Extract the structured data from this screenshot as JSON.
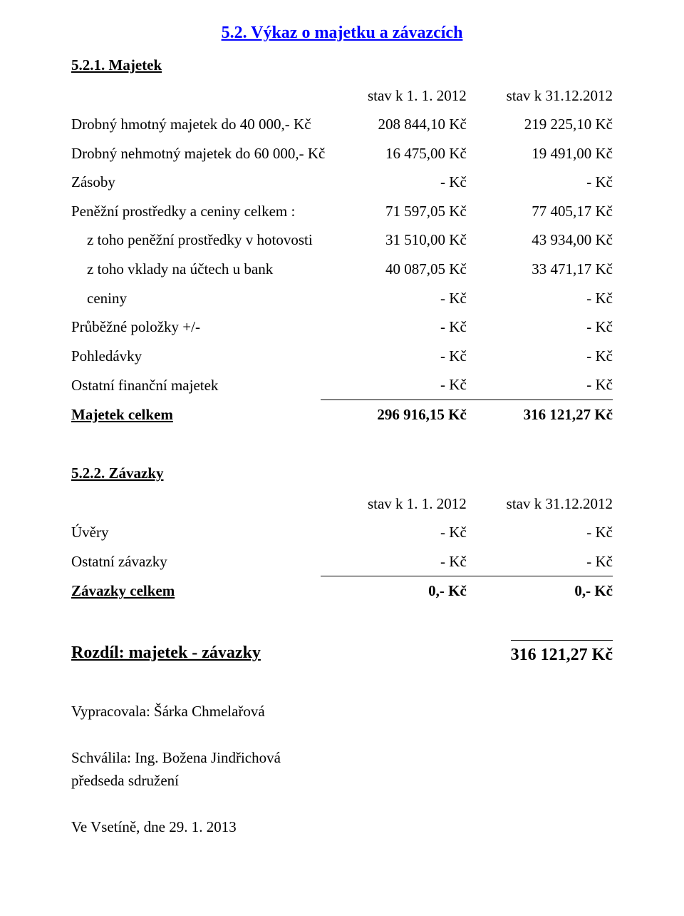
{
  "title": "5.2. Výkaz o majetku a závazcích",
  "assets": {
    "section_title": "5.2.1. Majetek",
    "header_col1": "stav k 1. 1. 2012",
    "header_col2": "stav k 31.12.2012",
    "rows": [
      {
        "label": "Drobný hmotný majetek do 40 000,- Kč",
        "v1": "208 844,10 Kč",
        "v2": "219 225,10 Kč",
        "indent": false
      },
      {
        "label": "Drobný nehmotný majetek do 60 000,- Kč",
        "v1": "16 475,00 Kč",
        "v2": "19 491,00 Kč",
        "indent": false
      },
      {
        "label": "Zásoby",
        "v1": "-  Kč",
        "v2": "-  Kč",
        "indent": false
      },
      {
        "label": "Peněžní prostředky a ceniny celkem :",
        "v1": "71 597,05 Kč",
        "v2": "77 405,17 Kč",
        "indent": false
      },
      {
        "label": "z toho peněžní prostředky v hotovosti",
        "v1": "31 510,00 Kč",
        "v2": "43 934,00 Kč",
        "indent": true
      },
      {
        "label": "z toho vklady na účtech u bank",
        "v1": "40 087,05 Kč",
        "v2": "33 471,17 Kč",
        "indent": true
      },
      {
        "label": "ceniny",
        "v1": "-  Kč",
        "v2": "-  Kč",
        "indent": true
      },
      {
        "label": "Průběžné položky +/-",
        "v1": "-  Kč",
        "v2": "-  Kč",
        "indent": false
      },
      {
        "label": "Pohledávky",
        "v1": "-  Kč",
        "v2": "-  Kč",
        "indent": false
      },
      {
        "label": "Ostatní finanční majetek",
        "v1": "-  Kč",
        "v2": "-  Kč",
        "indent": false
      }
    ],
    "total": {
      "label": "Majetek celkem",
      "v1": "296 916,15 Kč",
      "v2": "316 121,27 Kč"
    }
  },
  "liabilities": {
    "section_title": "5.2.2. Závazky",
    "header_col1": "stav k 1. 1. 2012",
    "header_col2": "stav k 31.12.2012",
    "rows": [
      {
        "label": "Úvěry",
        "v1": "-  Kč",
        "v2": "-  Kč"
      },
      {
        "label": "Ostatní závazky",
        "v1": "-  Kč",
        "v2": "-  Kč"
      }
    ],
    "total": {
      "label": "Závazky celkem",
      "v1": "0,- Kč",
      "v2": "0,- Kč"
    }
  },
  "difference": {
    "label": "Rozdíl:   majetek  -  závazky",
    "value": "316 121,27 Kč"
  },
  "footer": {
    "prepared_by": "Vypracovala: Šárka Chmelařová",
    "approved_by": "Schválila: Ing. Božena Jindřichová",
    "approved_role": "předseda sdružení",
    "place_date": "Ve Vsetíně, dne 29. 1. 2013"
  }
}
